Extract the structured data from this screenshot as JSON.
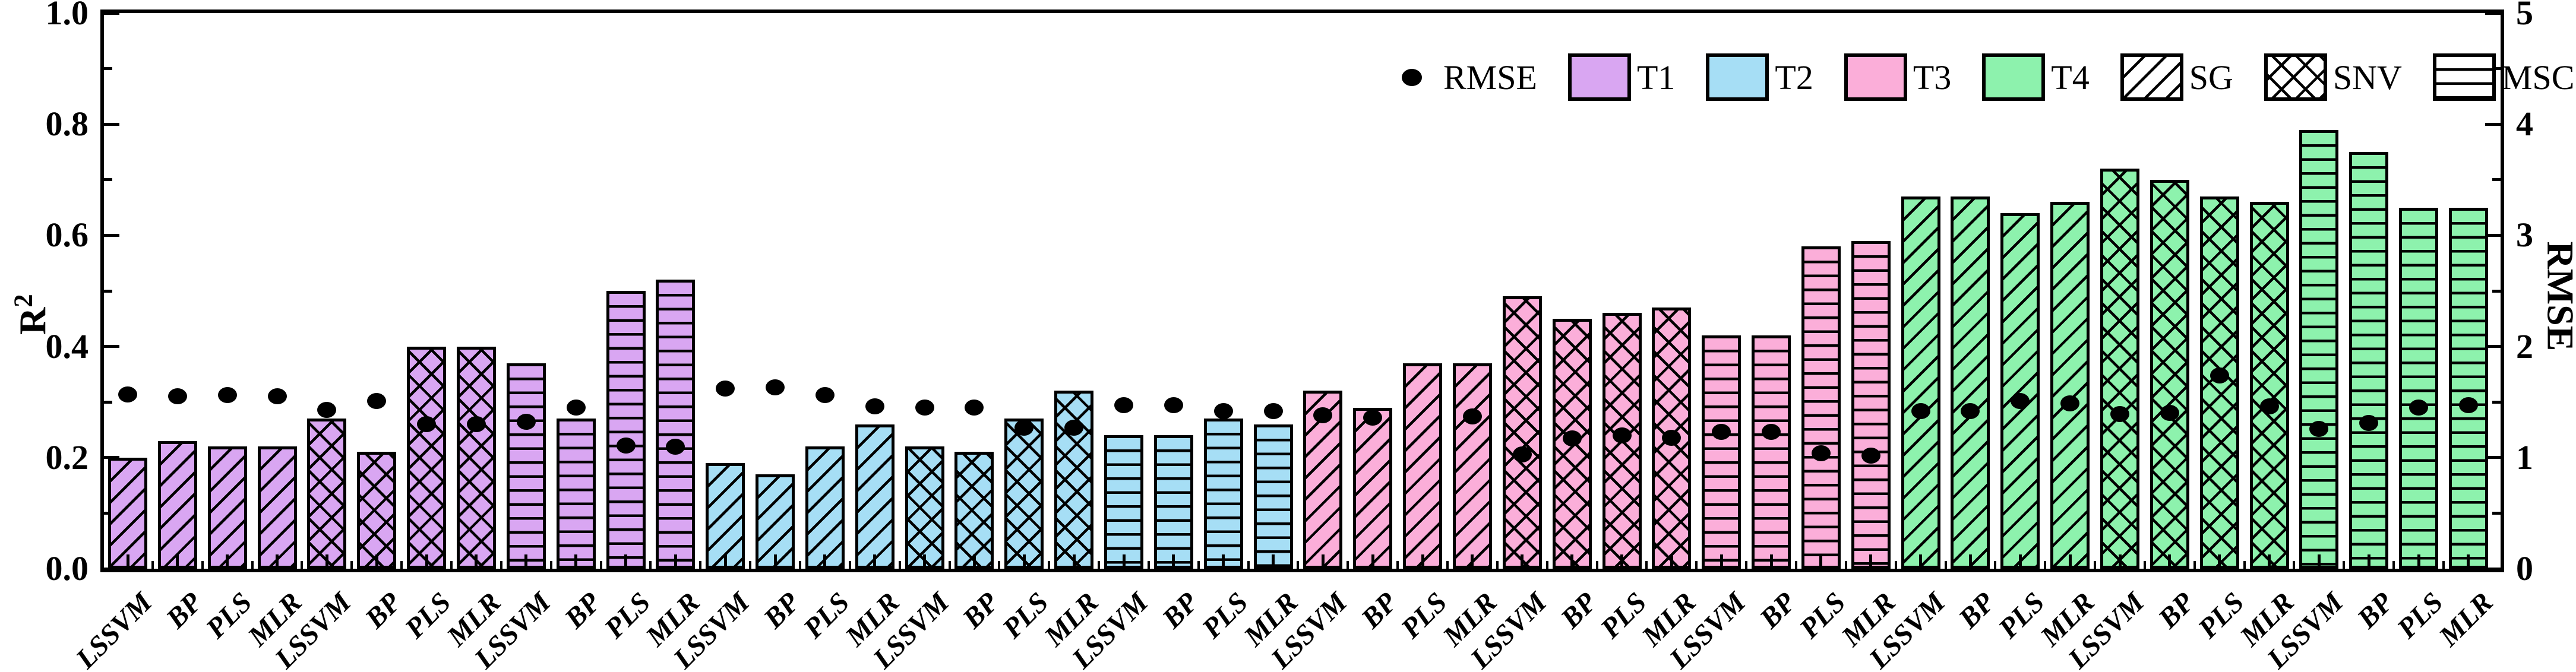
{
  "chart_data": {
    "type": "bar",
    "title": "",
    "point_series_label": "RMSE",
    "x_models": [
      "LSSVM",
      "BP",
      "PLS",
      "MLR"
    ],
    "axes": {
      "left": {
        "label": "R",
        "label_sup": "2",
        "min": 0,
        "max": 1,
        "major_step": 0.2,
        "minor_step": 0.1,
        "tick_labels": [
          "0.0",
          "0.2",
          "0.4",
          "0.6",
          "0.8",
          "1.0"
        ]
      },
      "right": {
        "label": "RMSE",
        "min": 0,
        "max": 5,
        "major_step": 1,
        "minor_step": 0.5,
        "tick_labels": [
          "0",
          "1",
          "2",
          "3",
          "4",
          "5"
        ]
      },
      "x_tick_labels": [
        "LSSVM",
        "BP",
        "PLS",
        "MLR",
        "LSSVM",
        "BP",
        "PLS",
        "MLR",
        "LSSVM",
        "BP",
        "PLS",
        "MLR",
        "LSSVM",
        "BP",
        "PLS",
        "MLR",
        "LSSVM",
        "BP",
        "PLS",
        "MLR",
        "LSSVM",
        "BP",
        "PLS",
        "MLR",
        "LSSVM",
        "BP",
        "PLS",
        "MLR",
        "LSSVM",
        "BP",
        "PLS",
        "MLR",
        "LSSVM",
        "BP",
        "PLS",
        "MLR",
        "LSSVM",
        "BP",
        "PLS",
        "MLR",
        "LSSVM",
        "BP",
        "PLS",
        "MLR",
        "LSSVM",
        "BP",
        "PLS",
        "MLR"
      ]
    },
    "treatments": [
      {
        "name": "T1",
        "color": "#d9a6f2",
        "preprocessing": [
          {
            "name": "SG",
            "hatch": "diagonal",
            "r2": [
              0.2,
              0.23,
              0.22,
              0.22
            ],
            "rmse": [
              1.57,
              1.55,
              1.56,
              1.55
            ]
          },
          {
            "name": "SNV",
            "hatch": "crosshatch",
            "r2": [
              0.27,
              0.21,
              0.4,
              0.4
            ],
            "rmse": [
              1.43,
              1.51,
              1.3,
              1.3
            ]
          },
          {
            "name": "MSC",
            "hatch": "horizontal",
            "r2": [
              0.37,
              0.27,
              0.5,
              0.52
            ],
            "rmse": [
              1.32,
              1.45,
              1.11,
              1.1
            ]
          }
        ]
      },
      {
        "name": "T2",
        "color": "#a6def5",
        "preprocessing": [
          {
            "name": "SG",
            "hatch": "diagonal",
            "r2": [
              0.19,
              0.17,
              0.22,
              0.26
            ],
            "rmse": [
              1.62,
              1.63,
              1.56,
              1.46
            ]
          },
          {
            "name": "SNV",
            "hatch": "crosshatch",
            "r2": [
              0.22,
              0.21,
              0.27,
              0.32
            ],
            "rmse": [
              1.45,
              1.45,
              1.27,
              1.27
            ]
          },
          {
            "name": "MSC",
            "hatch": "horizontal",
            "r2": [
              0.24,
              0.24,
              0.27,
              0.26
            ],
            "rmse": [
              1.47,
              1.47,
              1.42,
              1.42
            ]
          }
        ]
      },
      {
        "name": "T3",
        "color": "#fbaed9",
        "preprocessing": [
          {
            "name": "SG",
            "hatch": "diagonal",
            "r2": [
              0.32,
              0.29,
              0.37,
              0.37
            ],
            "rmse": [
              1.38,
              1.36,
              null,
              1.37
            ]
          },
          {
            "name": "SNV",
            "hatch": "crosshatch",
            "r2": [
              0.49,
              0.45,
              0.46,
              0.47
            ],
            "rmse": [
              1.03,
              1.17,
              1.2,
              1.18
            ]
          },
          {
            "name": "MSC",
            "hatch": "horizontal",
            "r2": [
              0.42,
              0.42,
              0.58,
              0.59
            ],
            "rmse": [
              1.23,
              1.23,
              1.04,
              1.02
            ]
          }
        ]
      },
      {
        "name": "T4",
        "color": "#8df2ad",
        "preprocessing": [
          {
            "name": "SG",
            "hatch": "diagonal",
            "r2": [
              0.67,
              0.67,
              0.64,
              0.66
            ],
            "rmse": [
              1.42,
              1.42,
              1.51,
              1.49
            ]
          },
          {
            "name": "SNV",
            "hatch": "crosshatch",
            "r2": [
              0.72,
              0.7,
              0.67,
              0.66
            ],
            "rmse": [
              1.39,
              1.4,
              1.74,
              1.46
            ]
          },
          {
            "name": "MSC",
            "hatch": "horizontal",
            "r2": [
              0.79,
              0.75,
              0.65,
              0.65
            ],
            "rmse": [
              1.26,
              1.31,
              1.45,
              1.47
            ]
          }
        ]
      }
    ],
    "legend": {
      "rmse_label": "RMSE",
      "color_items": [
        {
          "label": "T1",
          "color": "#d9a6f2"
        },
        {
          "label": "T2",
          "color": "#a6def5"
        },
        {
          "label": "T3",
          "color": "#fbaed9"
        },
        {
          "label": "T4",
          "color": "#8df2ad"
        }
      ],
      "pattern_items": [
        {
          "label": "SG",
          "hatch": "diagonal"
        },
        {
          "label": "SNV",
          "hatch": "crosshatch"
        },
        {
          "label": "MSC",
          "hatch": "horizontal"
        }
      ]
    }
  }
}
